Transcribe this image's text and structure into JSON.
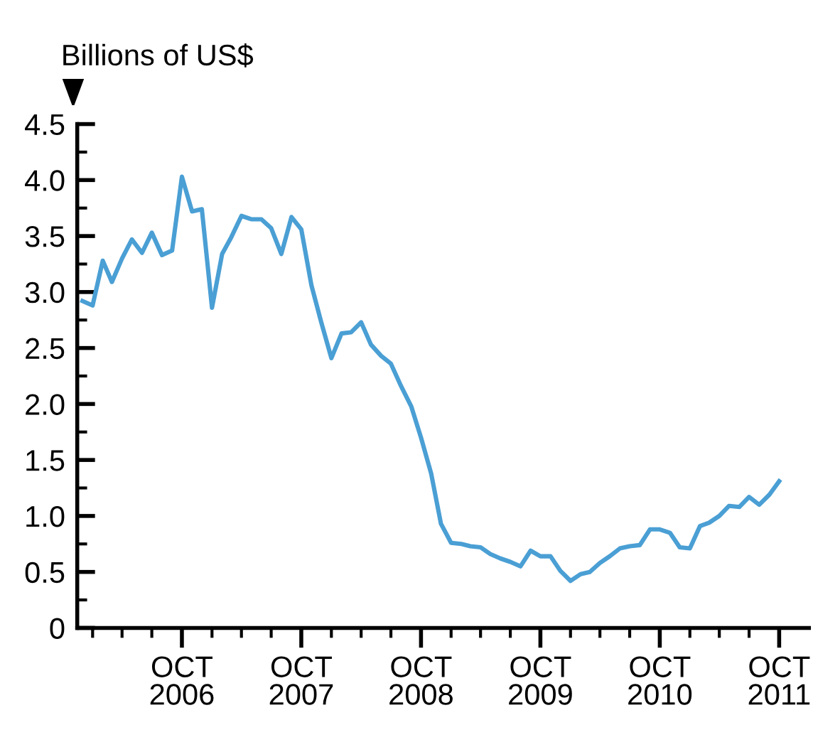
{
  "chart_data": {
    "type": "line",
    "ylabel": "Billions of US$",
    "x": [
      "2005-12",
      "2006-01",
      "2006-02",
      "2006-03",
      "2006-04",
      "2006-05",
      "2006-06",
      "2006-07",
      "2006-08",
      "2006-09",
      "2006-10",
      "2006-11",
      "2006-12",
      "2007-01",
      "2007-02",
      "2007-03",
      "2007-04",
      "2007-05",
      "2007-06",
      "2007-07",
      "2007-08",
      "2007-09",
      "2007-10",
      "2007-11",
      "2007-12",
      "2008-01",
      "2008-02",
      "2008-03",
      "2008-04",
      "2008-05",
      "2008-06",
      "2008-07",
      "2008-08",
      "2008-09",
      "2008-10",
      "2008-11",
      "2008-12",
      "2009-01",
      "2009-02",
      "2009-03",
      "2009-04",
      "2009-05",
      "2009-06",
      "2009-07",
      "2009-08",
      "2009-09",
      "2009-10",
      "2009-11",
      "2009-12",
      "2010-01",
      "2010-02",
      "2010-03",
      "2010-04",
      "2010-05",
      "2010-06",
      "2010-07",
      "2010-08",
      "2010-09",
      "2010-10",
      "2010-11",
      "2010-12",
      "2011-01",
      "2011-02",
      "2011-03",
      "2011-04",
      "2011-05",
      "2011-06",
      "2011-07",
      "2011-08",
      "2011-09",
      "2011-10"
    ],
    "series": [
      {
        "color": "#4a9fd4",
        "values": [
          2.92,
          2.88,
          3.28,
          3.09,
          3.3,
          3.47,
          3.35,
          3.53,
          3.33,
          3.37,
          4.03,
          3.72,
          3.74,
          2.86,
          3.34,
          3.49,
          3.68,
          3.65,
          3.65,
          3.57,
          3.34,
          3.67,
          3.56,
          3.06,
          2.73,
          2.41,
          2.63,
          2.64,
          2.73,
          2.53,
          2.43,
          2.36,
          2.16,
          1.98,
          1.7,
          1.38,
          0.93,
          0.76,
          0.75,
          0.73,
          0.72,
          0.66,
          0.62,
          0.59,
          0.55,
          0.69,
          0.64,
          0.64,
          0.51,
          0.42,
          0.48,
          0.5,
          0.58,
          0.64,
          0.71,
          0.73,
          0.74,
          0.88,
          0.88,
          0.85,
          0.72,
          0.71,
          0.91,
          0.94,
          1.0,
          1.09,
          1.08,
          1.17,
          1.1,
          1.19,
          1.31
        ]
      }
    ],
    "xlim": [
      "2005-11-15",
      "2011-12-31"
    ],
    "xticks": [
      {
        "value": "2006-01-01",
        "label": null
      },
      {
        "value": "2006-04-01",
        "label": null
      },
      {
        "value": "2006-07-01",
        "label": null
      },
      {
        "value": "2006-10-01",
        "label": "OCT\n2006"
      },
      {
        "value": "2007-01-01",
        "label": null
      },
      {
        "value": "2007-04-01",
        "label": null
      },
      {
        "value": "2007-07-01",
        "label": null
      },
      {
        "value": "2007-10-01",
        "label": "OCT\n2007"
      },
      {
        "value": "2008-01-01",
        "label": null
      },
      {
        "value": "2008-04-01",
        "label": null
      },
      {
        "value": "2008-07-01",
        "label": null
      },
      {
        "value": "2008-10-01",
        "label": "OCT\n2008"
      },
      {
        "value": "2009-01-01",
        "label": null
      },
      {
        "value": "2009-04-01",
        "label": null
      },
      {
        "value": "2009-07-01",
        "label": null
      },
      {
        "value": "2009-10-01",
        "label": "OCT\n2009"
      },
      {
        "value": "2010-01-01",
        "label": null
      },
      {
        "value": "2010-04-01",
        "label": null
      },
      {
        "value": "2010-07-01",
        "label": null
      },
      {
        "value": "2010-10-01",
        "label": "OCT\n2010"
      },
      {
        "value": "2011-01-01",
        "label": null
      },
      {
        "value": "2011-04-01",
        "label": null
      },
      {
        "value": "2011-07-01",
        "label": null
      },
      {
        "value": "2011-10-01",
        "label": "OCT\n2011"
      }
    ],
    "ylim": [
      0,
      4.5
    ],
    "yticks": [
      {
        "value": 0,
        "label": "0"
      },
      {
        "value": 0.25,
        "label": null
      },
      {
        "value": 0.5,
        "label": "0.5"
      },
      {
        "value": 0.75,
        "label": null
      },
      {
        "value": 1,
        "label": "1.0"
      },
      {
        "value": 1.25,
        "label": null
      },
      {
        "value": 1.5,
        "label": "1.5"
      },
      {
        "value": 1.75,
        "label": null
      },
      {
        "value": 2,
        "label": "2.0"
      },
      {
        "value": 2.25,
        "label": null
      },
      {
        "value": 2.5,
        "label": "2.5"
      },
      {
        "value": 2.75,
        "label": null
      },
      {
        "value": 3,
        "label": "3.0"
      },
      {
        "value": 3.25,
        "label": null
      },
      {
        "value": 3.5,
        "label": "3.5"
      },
      {
        "value": 3.75,
        "label": null
      },
      {
        "value": 4,
        "label": "4.0"
      },
      {
        "value": 4.25,
        "label": null
      },
      {
        "value": 4.5,
        "label": "4.5"
      }
    ],
    "marker": "none",
    "line_style": "solid"
  }
}
